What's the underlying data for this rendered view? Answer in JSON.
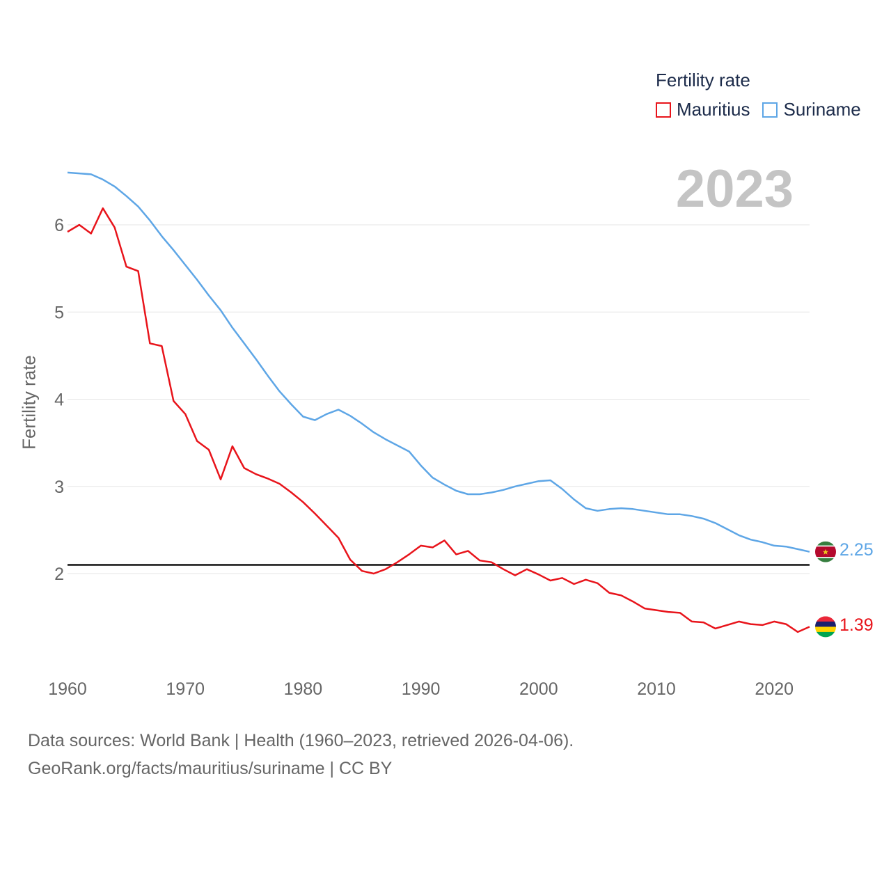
{
  "legend": {
    "title": "Fertility rate",
    "items": [
      {
        "name": "Mauritius",
        "color": "#e8141b"
      },
      {
        "name": "Suriname",
        "color": "#5ea6e6"
      }
    ]
  },
  "year_display": "2023",
  "source": {
    "line1": "Data sources: World Bank | Health (1960–2023, retrieved 2026-04-06).",
    "line2": "GeoRank.org/facts/mauritius/suriname | CC BY"
  },
  "end_labels": {
    "suriname": "2.25",
    "mauritius": "1.39"
  },
  "chart_data": {
    "type": "line",
    "ylabel": "Fertility rate",
    "xlabel": "",
    "xlim": [
      1960,
      2023
    ],
    "ylim": [
      1.0,
      6.6
    ],
    "xticks": [
      1960,
      1970,
      1980,
      1990,
      2000,
      2010,
      2020
    ],
    "yticks": [
      2,
      3,
      4,
      5,
      6
    ],
    "reference_line": 2.1,
    "x": [
      1960,
      1961,
      1962,
      1963,
      1964,
      1965,
      1966,
      1967,
      1968,
      1969,
      1970,
      1971,
      1972,
      1973,
      1974,
      1975,
      1976,
      1977,
      1978,
      1979,
      1980,
      1981,
      1982,
      1983,
      1984,
      1985,
      1986,
      1987,
      1988,
      1989,
      1990,
      1991,
      1992,
      1993,
      1994,
      1995,
      1996,
      1997,
      1998,
      1999,
      2000,
      2001,
      2002,
      2003,
      2004,
      2005,
      2006,
      2007,
      2008,
      2009,
      2010,
      2011,
      2012,
      2013,
      2014,
      2015,
      2016,
      2017,
      2018,
      2019,
      2020,
      2021,
      2022,
      2023
    ],
    "series": [
      {
        "name": "Suriname",
        "color": "#5ea6e6",
        "values": [
          6.6,
          6.59,
          6.58,
          6.52,
          6.44,
          6.33,
          6.21,
          6.05,
          5.87,
          5.71,
          5.54,
          5.37,
          5.19,
          5.02,
          4.82,
          4.64,
          4.46,
          4.27,
          4.09,
          3.94,
          3.8,
          3.76,
          3.83,
          3.88,
          3.81,
          3.72,
          3.62,
          3.54,
          3.47,
          3.4,
          3.24,
          3.1,
          3.02,
          2.95,
          2.91,
          2.91,
          2.93,
          2.96,
          3.0,
          3.03,
          3.06,
          3.07,
          2.97,
          2.85,
          2.75,
          2.72,
          2.74,
          2.75,
          2.74,
          2.72,
          2.7,
          2.68,
          2.68,
          2.66,
          2.63,
          2.58,
          2.51,
          2.44,
          2.39,
          2.36,
          2.32,
          2.31,
          2.28,
          2.25
        ]
      },
      {
        "name": "Mauritius",
        "color": "#e8141b",
        "values": [
          5.92,
          6.0,
          5.9,
          6.19,
          5.97,
          5.52,
          5.47,
          4.64,
          4.61,
          3.98,
          3.83,
          3.52,
          3.42,
          3.08,
          3.46,
          3.21,
          3.14,
          3.09,
          3.03,
          2.93,
          2.82,
          2.69,
          2.55,
          2.41,
          2.16,
          2.03,
          2.0,
          2.05,
          2.13,
          2.22,
          2.32,
          2.3,
          2.38,
          2.22,
          2.26,
          2.15,
          2.13,
          2.05,
          1.98,
          2.05,
          1.99,
          1.92,
          1.95,
          1.88,
          1.93,
          1.89,
          1.78,
          1.75,
          1.68,
          1.6,
          1.58,
          1.56,
          1.55,
          1.45,
          1.44,
          1.37,
          1.41,
          1.45,
          1.42,
          1.41,
          1.45,
          1.42,
          1.33,
          1.39
        ]
      }
    ]
  }
}
